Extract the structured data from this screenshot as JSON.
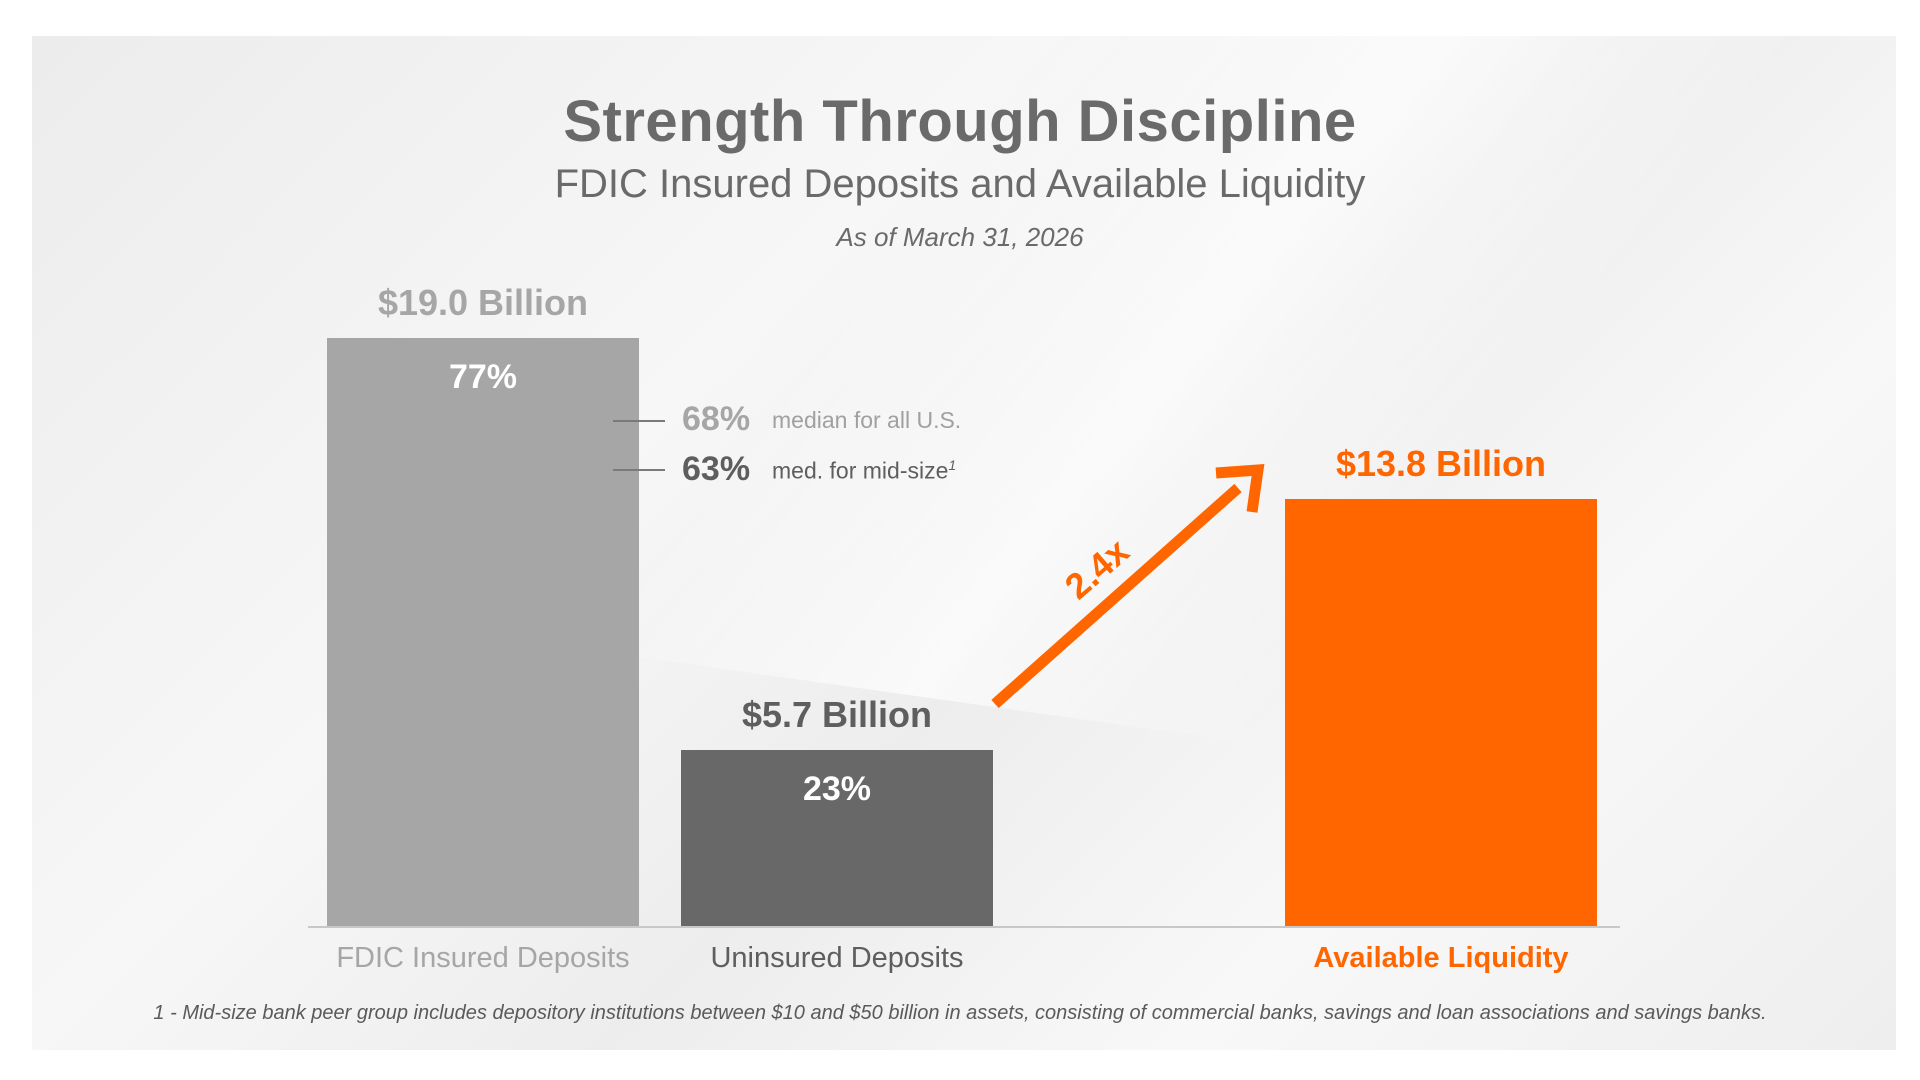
{
  "chart_data": {
    "type": "bar",
    "title": "Strength Through Discipline",
    "subtitle": "FDIC Insured Deposits and Available Liquidity",
    "as_of": "As of March 31, 2026",
    "categories": [
      "FDIC Insured Deposits",
      "Uninsured Deposits",
      "Available Liquidity"
    ],
    "values": [
      19.0,
      5.7,
      13.8
    ],
    "value_labels": [
      "$19.0 Billion",
      "$5.7 Billion",
      "$13.8 Billion"
    ],
    "percent_labels": [
      "77%",
      "23%",
      ""
    ],
    "ylim": [
      0,
      19.0
    ],
    "colors": [
      "#a6a6a6",
      "#686868",
      "#ff6600"
    ],
    "benchmarks": [
      {
        "value": "68%",
        "text": "median for all U.S.",
        "sup": ""
      },
      {
        "value": "63%",
        "text": "med. for mid-size",
        "sup": "1"
      }
    ],
    "multiplier_label": "2.4x",
    "grid": false,
    "legend": "none"
  },
  "footnote": "1 - Mid-size bank peer group includes depository institutions between $10 and $50 billion in assets, consisting of commercial banks, savings and loan associations and savings banks."
}
